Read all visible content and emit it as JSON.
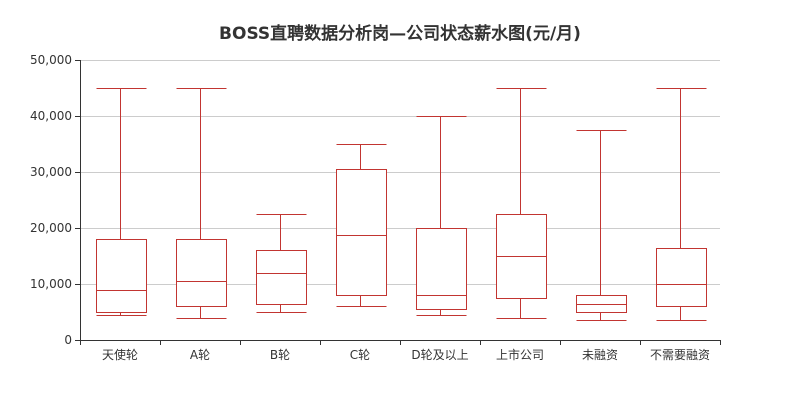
{
  "colors": {
    "box": "#c23531",
    "box_fill": "#ffffff",
    "axis": "#333333",
    "grid": "#cccccc",
    "text": "#333333"
  },
  "chart_data": {
    "type": "boxplot",
    "title": "BOSS直聘数据分析岗—公司状态薪水图(元/月)",
    "categories": [
      "天使轮",
      "A轮",
      "B轮",
      "C轮",
      "D轮及以上",
      "上市公司",
      "未融资",
      "不需要融资"
    ],
    "ylim": [
      0,
      50000
    ],
    "y_ticks": [
      0,
      10000,
      20000,
      30000,
      40000,
      50000
    ],
    "grid": true,
    "boxes": [
      {
        "min": 4500,
        "q1": 5000,
        "median": 9000,
        "q3": 18000,
        "max": 45000
      },
      {
        "min": 4000,
        "q1": 6000,
        "median": 10500,
        "q3": 18000,
        "max": 45000
      },
      {
        "min": 5000,
        "q1": 6500,
        "median": 12000,
        "q3": 16000,
        "max": 22500
      },
      {
        "min": 6000,
        "q1": 8000,
        "median": 18750,
        "q3": 30500,
        "max": 35000
      },
      {
        "min": 4500,
        "q1": 5500,
        "median": 8000,
        "q3": 20000,
        "max": 40000
      },
      {
        "min": 4000,
        "q1": 7500,
        "median": 15000,
        "q3": 22500,
        "max": 45000
      },
      {
        "min": 3500,
        "q1": 5000,
        "median": 6500,
        "q3": 8000,
        "max": 37500
      },
      {
        "min": 3500,
        "q1": 6000,
        "median": 10000,
        "q3": 16500,
        "max": 45000
      }
    ]
  }
}
